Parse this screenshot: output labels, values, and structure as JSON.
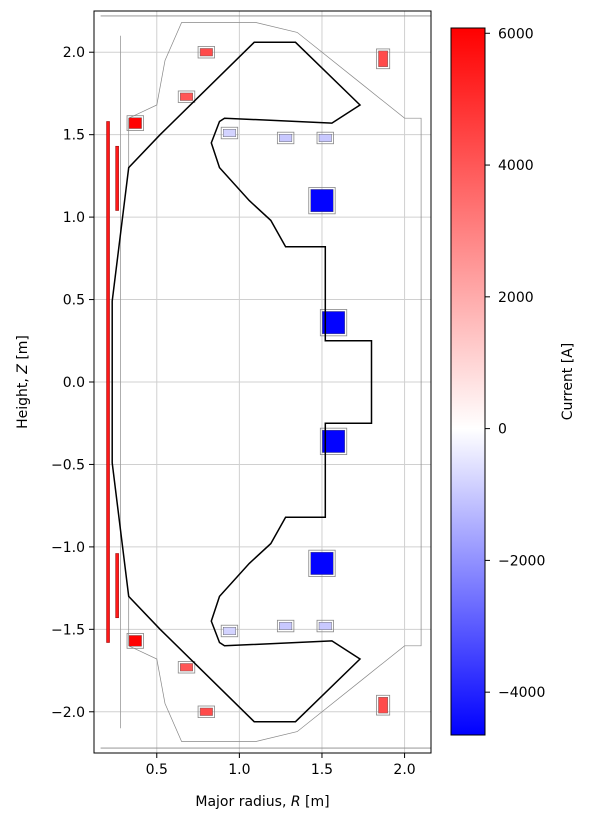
{
  "chart_data": {
    "type": "heatmap",
    "title": "",
    "xlabel": "Major radius, ",
    "xlabel_italic": "R",
    "xlabel_unit": " [m]",
    "ylabel": "Height, ",
    "ylabel_italic": "Z",
    "ylabel_unit": " [m]",
    "xlim": [
      0.12,
      2.16
    ],
    "ylim": [
      -2.25,
      2.25
    ],
    "x_ticks": [
      0.5,
      1.0,
      1.5,
      2.0
    ],
    "x_tick_labels": [
      "0.5",
      "1.0",
      "1.5",
      "2.0"
    ],
    "y_ticks": [
      2.0,
      1.5,
      1.0,
      0.5,
      0.0,
      -0.5,
      -1.0,
      -1.5,
      -2.0
    ],
    "y_tick_labels": [
      "2.0",
      "1.5",
      "1.0",
      "0.5",
      "0.0",
      "−0.5",
      "−1.0",
      "−1.5",
      "−2.0"
    ],
    "grid": true,
    "colorbar": {
      "label": "Current [A]",
      "range": [
        -4650,
        6080
      ],
      "ticks": [
        6000,
        4000,
        2000,
        0,
        -2000,
        -4000
      ],
      "tick_labels": [
        "6000",
        "4000",
        "2000",
        "0",
        "−2000",
        "−4000"
      ],
      "colormap": "bwr",
      "colors": {
        "low": "#0000ff",
        "mid": "#ffffff",
        "high": "#ff0000"
      }
    },
    "vessel_outline": [
      [
        0.23,
        0.0
      ],
      [
        0.23,
        0.5
      ],
      [
        0.33,
        1.3
      ],
      [
        0.33,
        1.6
      ],
      [
        0.5,
        1.68
      ],
      [
        0.55,
        1.95
      ],
      [
        0.65,
        2.18
      ],
      [
        1.1,
        2.18
      ],
      [
        1.35,
        2.12
      ],
      [
        1.75,
        1.8
      ],
      [
        2.0,
        1.6
      ],
      [
        2.1,
        1.6
      ],
      [
        2.1,
        -1.6
      ],
      [
        2.0,
        -1.6
      ],
      [
        1.75,
        -1.8
      ],
      [
        1.35,
        -2.12
      ],
      [
        1.1,
        -2.18
      ],
      [
        0.65,
        -2.18
      ],
      [
        0.55,
        -1.95
      ],
      [
        0.5,
        -1.68
      ],
      [
        0.33,
        -1.6
      ],
      [
        0.33,
        -1.3
      ],
      [
        0.23,
        -0.5
      ]
    ],
    "plasma_boundary": [
      [
        0.23,
        0.0
      ],
      [
        0.23,
        0.49
      ],
      [
        0.33,
        1.3
      ],
      [
        0.33,
        1.3
      ],
      [
        0.52,
        1.5
      ],
      [
        1.09,
        2.06
      ],
      [
        1.34,
        2.06
      ],
      [
        1.73,
        1.68
      ],
      [
        1.56,
        1.57
      ],
      [
        0.91,
        1.6
      ],
      [
        0.88,
        1.58
      ],
      [
        0.83,
        1.45
      ],
      [
        0.88,
        1.3
      ],
      [
        1.06,
        1.1
      ],
      [
        1.19,
        0.98
      ],
      [
        1.28,
        0.82
      ],
      [
        1.52,
        0.82
      ],
      [
        1.52,
        0.25
      ],
      [
        1.8,
        0.25
      ],
      [
        1.8,
        -0.25
      ],
      [
        1.52,
        -0.25
      ],
      [
        1.52,
        -0.82
      ],
      [
        1.28,
        -0.82
      ],
      [
        1.19,
        -0.98
      ],
      [
        1.06,
        -1.1
      ],
      [
        0.88,
        -1.3
      ],
      [
        0.83,
        -1.45
      ],
      [
        0.88,
        -1.58
      ],
      [
        0.91,
        -1.6
      ],
      [
        1.56,
        -1.57
      ],
      [
        1.73,
        -1.68
      ],
      [
        1.34,
        -2.06
      ],
      [
        1.09,
        -2.06
      ],
      [
        0.52,
        -1.5
      ],
      [
        0.33,
        -1.3
      ],
      [
        0.33,
        -1.3
      ],
      [
        0.23,
        -0.49
      ]
    ],
    "coils": [
      {
        "r": 0.8,
        "z": 2.0,
        "w": 0.1,
        "h": 0.07,
        "current": 4300
      },
      {
        "r": 1.87,
        "z": 1.96,
        "w": 0.08,
        "h": 0.12,
        "current": 4300
      },
      {
        "r": 0.68,
        "z": 1.73,
        "w": 0.1,
        "h": 0.07,
        "current": 4000
      },
      {
        "r": 0.37,
        "z": 1.57,
        "w": 0.1,
        "h": 0.09,
        "current": 6000
      },
      {
        "r": 0.94,
        "z": 1.51,
        "w": 0.1,
        "h": 0.07,
        "current": -800
      },
      {
        "r": 1.28,
        "z": 1.48,
        "w": 0.1,
        "h": 0.07,
        "current": -1000
      },
      {
        "r": 1.52,
        "z": 1.48,
        "w": 0.1,
        "h": 0.07,
        "current": -1000
      },
      {
        "r": 1.5,
        "z": 1.1,
        "w": 0.16,
        "h": 0.16,
        "current": -4600
      },
      {
        "r": 1.57,
        "z": 0.36,
        "w": 0.16,
        "h": 0.16,
        "current": -4600
      },
      {
        "r": 1.57,
        "z": -0.36,
        "w": 0.16,
        "h": 0.16,
        "current": -4600
      },
      {
        "r": 1.5,
        "z": -1.1,
        "w": 0.16,
        "h": 0.16,
        "current": -4600
      },
      {
        "r": 0.94,
        "z": -1.51,
        "w": 0.1,
        "h": 0.07,
        "current": -800
      },
      {
        "r": 1.28,
        "z": -1.48,
        "w": 0.1,
        "h": 0.07,
        "current": -1000
      },
      {
        "r": 1.52,
        "z": -1.48,
        "w": 0.1,
        "h": 0.07,
        "current": -1000
      },
      {
        "r": 0.37,
        "z": -1.57,
        "w": 0.1,
        "h": 0.09,
        "current": 6000
      },
      {
        "r": 0.68,
        "z": -1.73,
        "w": 0.1,
        "h": 0.07,
        "current": 4000
      },
      {
        "r": 0.8,
        "z": -2.0,
        "w": 0.1,
        "h": 0.07,
        "current": 4300
      },
      {
        "r": 1.87,
        "z": -1.96,
        "w": 0.08,
        "h": 0.12,
        "current": 4300
      }
    ],
    "solenoid": {
      "r": 0.205,
      "z_top": 1.58,
      "z_bottom": -1.58,
      "current": 5500
    },
    "solenoid_ends": [
      {
        "r": 0.26,
        "z_top": 1.43,
        "z_bottom": 1.04,
        "current": 5500
      },
      {
        "r": 0.26,
        "z_top": -1.04,
        "z_bottom": -1.43,
        "current": 5500
      }
    ]
  }
}
